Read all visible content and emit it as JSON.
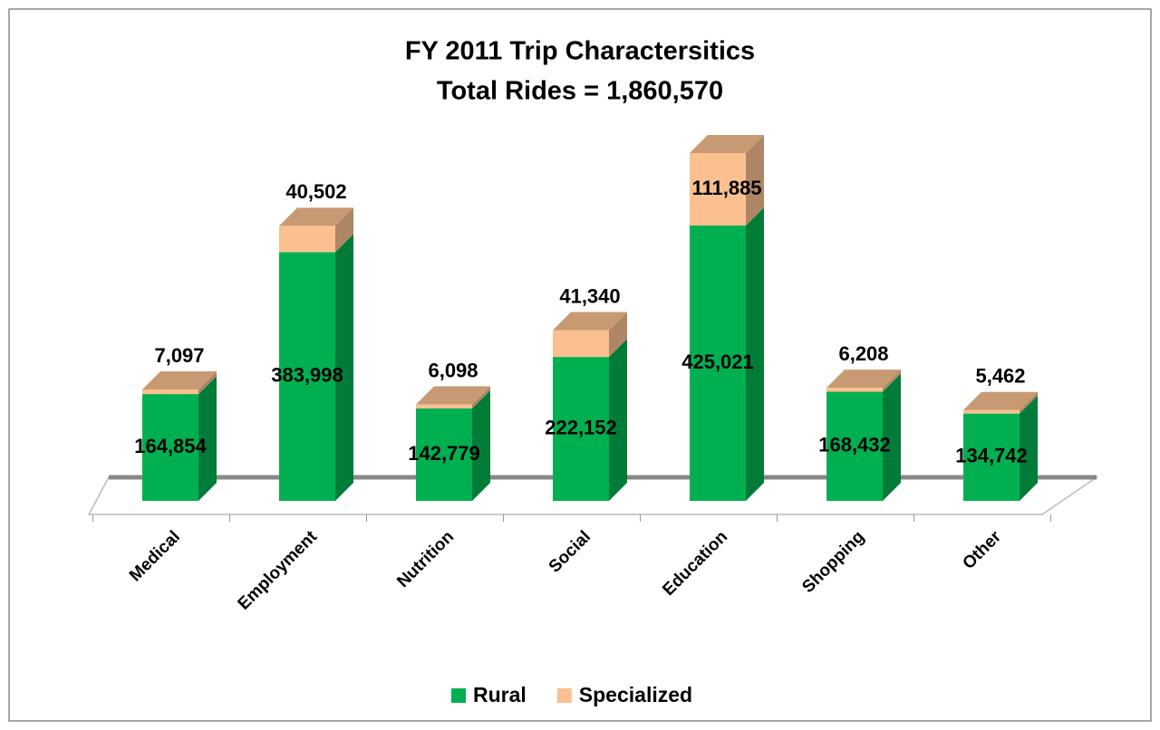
{
  "chart_data": {
    "type": "bar",
    "stacked": true,
    "title": "FY 2011 Trip Charactersitics",
    "subtitle": "Total Rides = 1,860,570",
    "categories": [
      "Medical",
      "Employment",
      "Nutrition",
      "Social",
      "Education",
      "Shopping",
      "Other"
    ],
    "series": [
      {
        "name": "Rural",
        "color": "#00b050",
        "values": [
          164854,
          383998,
          142779,
          222152,
          425021,
          168432,
          134742
        ],
        "value_labels": [
          "164,854",
          "383,998",
          "142,779",
          "222,152",
          "425,021",
          "168,432",
          "134,742"
        ]
      },
      {
        "name": "Specialized",
        "color": "#fac090",
        "values": [
          7097,
          40502,
          6098,
          41340,
          111885,
          6208,
          5462
        ],
        "value_labels": [
          "7,097",
          "40,502",
          "6,098",
          "41,340",
          "111,885",
          "6,208",
          "5,462"
        ]
      }
    ],
    "legend": "bottom"
  }
}
